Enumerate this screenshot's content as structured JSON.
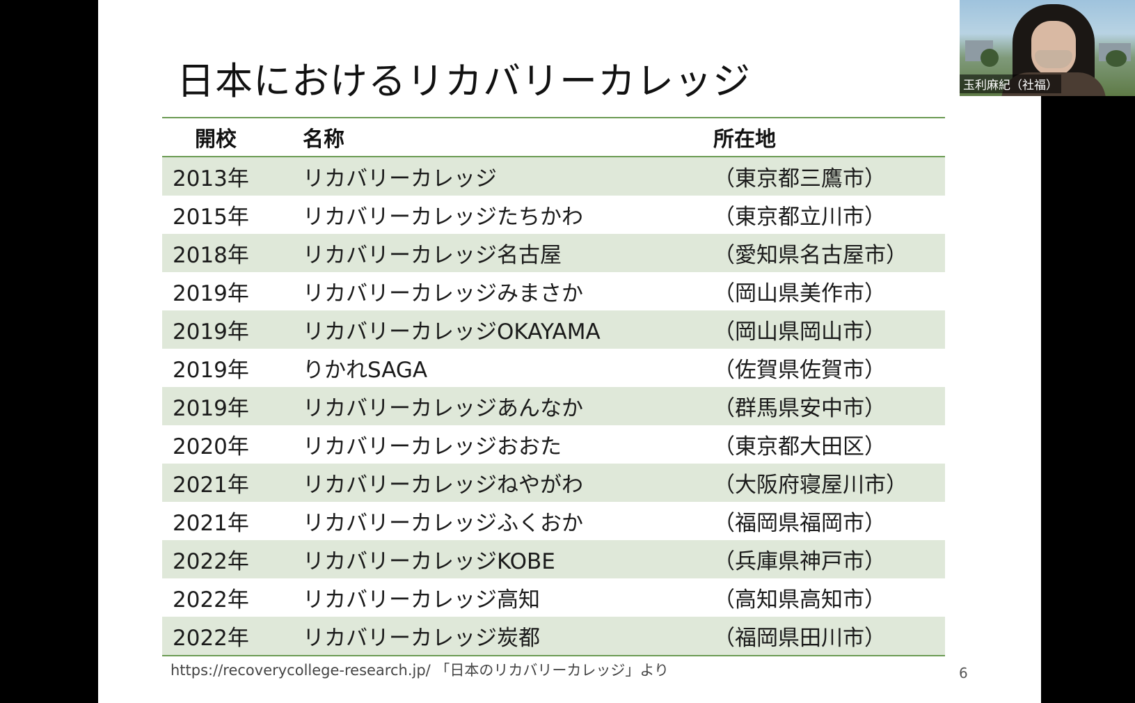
{
  "slide": {
    "title": "日本におけるリカバリーカレッジ",
    "headers": {
      "year": "開校",
      "name": "名称",
      "location": "所在地"
    },
    "rows": [
      {
        "year": "2013年",
        "name": "リカバリーカレッジ",
        "location": "（東京都三鷹市）"
      },
      {
        "year": "2015年",
        "name": "リカバリーカレッジたちかわ",
        "location": "（東京都立川市）"
      },
      {
        "year": "2018年",
        "name": "リカバリーカレッジ名古屋",
        "location": "（愛知県名古屋市）"
      },
      {
        "year": "2019年",
        "name": "リカバリーカレッジみまさか",
        "location": "（岡山県美作市）"
      },
      {
        "year": "2019年",
        "name": "リカバリーカレッジOKAYAMA",
        "location": "（岡山県岡山市）"
      },
      {
        "year": "2019年",
        "name": "りかれSAGA",
        "location": "（佐賀県佐賀市）"
      },
      {
        "year": "2019年",
        "name": "リカバリーカレッジあんなか",
        "location": "（群馬県安中市）"
      },
      {
        "year": "2020年",
        "name": "リカバリーカレッジおおた",
        "location": "（東京都大田区）"
      },
      {
        "year": "2021年",
        "name": "リカバリーカレッジねやがわ",
        "location": "（大阪府寝屋川市）"
      },
      {
        "year": "2021年",
        "name": "リカバリーカレッジふくおか",
        "location": "（福岡県福岡市）"
      },
      {
        "year": "2022年",
        "name": "リカバリーカレッジKOBE",
        "location": "（兵庫県神戸市）"
      },
      {
        "year": "2022年",
        "name": "リカバリーカレッジ高知",
        "location": "（高知県高知市）"
      },
      {
        "year": "2022年",
        "name": "リカバリーカレッジ炭都",
        "location": "（福岡県田川市）"
      }
    ],
    "source": "https://recoverycollege-research.jp/ 「日本のリカバリーカレッジ」より",
    "page_number": "6"
  },
  "video": {
    "participant_name": "玉利麻紀（社福）"
  },
  "colors": {
    "accent_green": "#6a9a52",
    "row_band": "#dfe8d9",
    "background": "#000000"
  }
}
